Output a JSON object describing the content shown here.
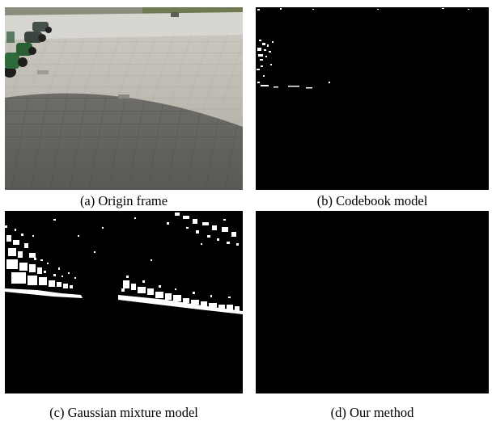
{
  "figure": {
    "panels": [
      {
        "id": "a",
        "caption": "(a) Origin frame",
        "content": "photo"
      },
      {
        "id": "b",
        "caption": "(b) Codebook model",
        "content": "mask"
      },
      {
        "id": "c",
        "caption": "(c) Gaussian mixture model",
        "content": "mask"
      },
      {
        "id": "d",
        "caption": "(d) Our method",
        "content": "mask"
      }
    ],
    "colors": {
      "background": "#ffffff",
      "mask_background": "#000000",
      "foreground": "#ffffff"
    }
  }
}
